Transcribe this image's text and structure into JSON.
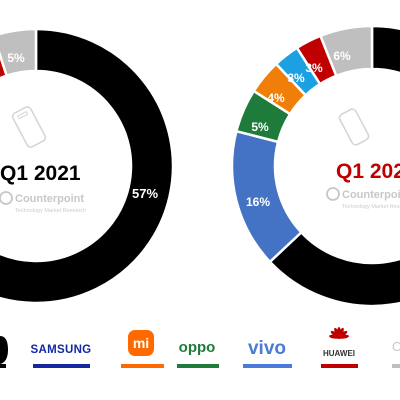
{
  "chart_data": [
    {
      "type": "pie",
      "title": "Q1 2021",
      "style": "donut",
      "labels": [
        {
          "text": "57%",
          "value": 57,
          "color": "#000000"
        },
        {
          "text": "5%",
          "value": 5,
          "color": "#bfbfbf"
        }
      ]
    },
    {
      "type": "pie",
      "title": "Q1 202",
      "title_color": "#c00000",
      "style": "donut",
      "labels": [
        {
          "text": "16%",
          "value": 16,
          "color": "#4472c4"
        },
        {
          "text": "5%",
          "value": 5,
          "color": "#1e7b3a"
        },
        {
          "text": "4%",
          "value": 4,
          "color": "#f07f0a"
        },
        {
          "text": "3%",
          "value": 3,
          "color": "#1ba1e2"
        },
        {
          "text": "3%",
          "value": 3,
          "color": "#c00000"
        },
        {
          "text": "6%",
          "value": 6,
          "color": "#bfbfbf"
        }
      ]
    }
  ],
  "watermark": {
    "brand": "Counterpoint",
    "subtitle": "Technology Market Research"
  },
  "legend": [
    {
      "name": "SAMSUNG",
      "icon": "samsung-logo",
      "bar_color": "#1428a0"
    },
    {
      "name": "mi",
      "icon": "xiaomi-logo",
      "bar_color": "#ff6900"
    },
    {
      "name": "oppo",
      "icon": "oppo-logo",
      "bar_color": "#1e7b3a"
    },
    {
      "name": "vivo",
      "icon": "vivo-logo",
      "bar_color": "#4a7bd8"
    },
    {
      "name": "HUAWEI",
      "icon": "huawei-logo",
      "bar_color": "#c00000"
    }
  ],
  "colors": {
    "apple": "#000000",
    "samsung": "#4472c4",
    "xiaomi": "#f07f0a",
    "oppo": "#1e7b3a",
    "vivo": "#1ba1e2",
    "huawei": "#c00000",
    "others": "#bfbfbf"
  }
}
